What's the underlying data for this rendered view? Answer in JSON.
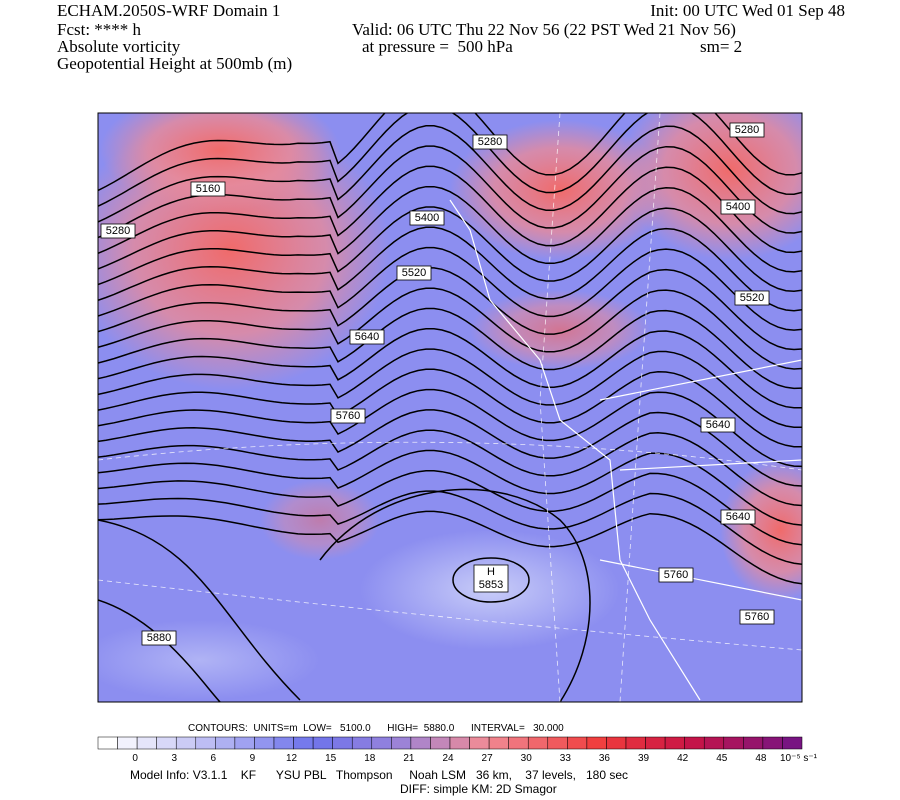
{
  "header": {
    "title": "ECHAM.2050S-WRF Domain 1",
    "init": "Init: 00 UTC Wed 01 Sep 48",
    "fcst": "Fcst: **** h",
    "valid": "Valid: 06 UTC Thu 22 Nov 56 (22 PST Wed 21 Nov 56)",
    "field": "Absolute vorticity",
    "pressure": "at pressure =  500 hPa",
    "smoothing": "sm= 2",
    "contour_field": "Geopotential Height at 500mb (m)"
  },
  "map": {
    "contour_labels": [
      "5280",
      "5160",
      "5280",
      "5400",
      "5520",
      "5640",
      "5760",
      "5880",
      "5280",
      "5400",
      "5520",
      "5640",
      "5640",
      "5760",
      "5760"
    ],
    "high_marker": "H",
    "high_value": "5853"
  },
  "colorbar": {
    "labels": [
      0,
      3,
      6,
      9,
      12,
      15,
      18,
      21,
      24,
      27,
      30,
      33,
      36,
      39,
      42,
      45,
      48
    ],
    "unit": "10⁻⁵ s⁻¹"
  },
  "footer": {
    "contours": "CONTOURS:  UNITS=m  LOW=   5100.0      HIGH=  5880.0      INTERVAL=   30.000",
    "model_info": "Model Info: V3.1.1    KF      YSU PBL   Thompson     Noah LSM   36 km,    37 levels,   180 sec",
    "diff": "DIFF: simple KM: 2D Smagor"
  }
}
